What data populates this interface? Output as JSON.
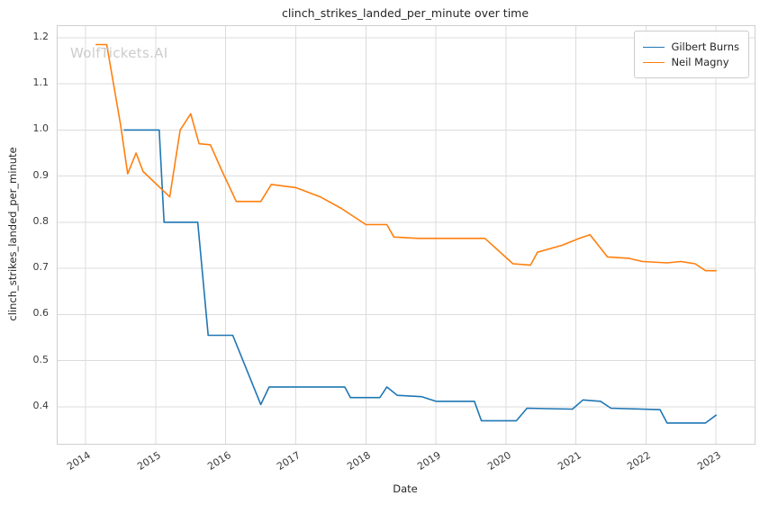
{
  "watermark": "WolfTickets.AI",
  "chart_data": {
    "type": "line",
    "title": "clinch_strikes_landed_per_minute over time",
    "xlabel": "Date",
    "ylabel": "clinch_strikes_landed_per_minute",
    "xlim": [
      2013.6,
      2023.55
    ],
    "ylim": [
      0.32,
      1.225
    ],
    "grid": true,
    "legend_position": "upper right",
    "grid_color": "#dcdcdc",
    "xticks": [
      2014,
      2015,
      2016,
      2017,
      2018,
      2019,
      2020,
      2021,
      2022,
      2023
    ],
    "xtick_labels": [
      "2014",
      "2015",
      "2016",
      "2017",
      "2018",
      "2019",
      "2020",
      "2021",
      "2022",
      "2023"
    ],
    "yticks": [
      0.4,
      0.5,
      0.6,
      0.7,
      0.8,
      0.9,
      1.0,
      1.1,
      1.2
    ],
    "ytick_labels": [
      "0.4",
      "0.5",
      "0.6",
      "0.7",
      "0.8",
      "0.9",
      "1.0",
      "1.1",
      "1.2"
    ],
    "series": [
      {
        "name": "Gilbert Burns",
        "color": "#1f77b4",
        "x": [
          2014.55,
          2015.05,
          2015.12,
          2015.6,
          2015.75,
          2016.1,
          2016.5,
          2016.62,
          2017.7,
          2017.78,
          2018.2,
          2018.3,
          2018.45,
          2018.8,
          2019.0,
          2019.55,
          2019.65,
          2020.15,
          2020.3,
          2020.95,
          2021.1,
          2021.35,
          2021.5,
          2022.2,
          2022.3,
          2022.85,
          2023.0
        ],
        "y": [
          1.0,
          1.0,
          0.8,
          0.8,
          0.555,
          0.555,
          0.405,
          0.443,
          0.443,
          0.42,
          0.42,
          0.443,
          0.425,
          0.422,
          0.412,
          0.412,
          0.37,
          0.37,
          0.397,
          0.395,
          0.415,
          0.412,
          0.397,
          0.394,
          0.365,
          0.365,
          0.382
        ]
      },
      {
        "name": "Neil Magny",
        "color": "#ff7f0e",
        "x": [
          2014.15,
          2014.3,
          2014.5,
          2014.6,
          2014.72,
          2014.82,
          2015.2,
          2015.35,
          2015.5,
          2015.62,
          2015.78,
          2015.95,
          2016.15,
          2016.5,
          2016.65,
          2017.0,
          2017.35,
          2017.65,
          2018.0,
          2018.3,
          2018.4,
          2018.75,
          2019.3,
          2019.7,
          2020.1,
          2020.35,
          2020.45,
          2020.8,
          2021.05,
          2021.2,
          2021.45,
          2021.75,
          2021.95,
          2022.3,
          2022.5,
          2022.7,
          2022.85,
          2023.0
        ],
        "y": [
          1.185,
          1.185,
          1.01,
          0.905,
          0.95,
          0.91,
          0.855,
          1.0,
          1.035,
          0.97,
          0.968,
          0.91,
          0.845,
          0.845,
          0.882,
          0.875,
          0.855,
          0.83,
          0.795,
          0.795,
          0.768,
          0.765,
          0.765,
          0.765,
          0.71,
          0.707,
          0.735,
          0.75,
          0.765,
          0.773,
          0.725,
          0.722,
          0.715,
          0.712,
          0.715,
          0.71,
          0.695,
          0.695
        ]
      }
    ]
  }
}
